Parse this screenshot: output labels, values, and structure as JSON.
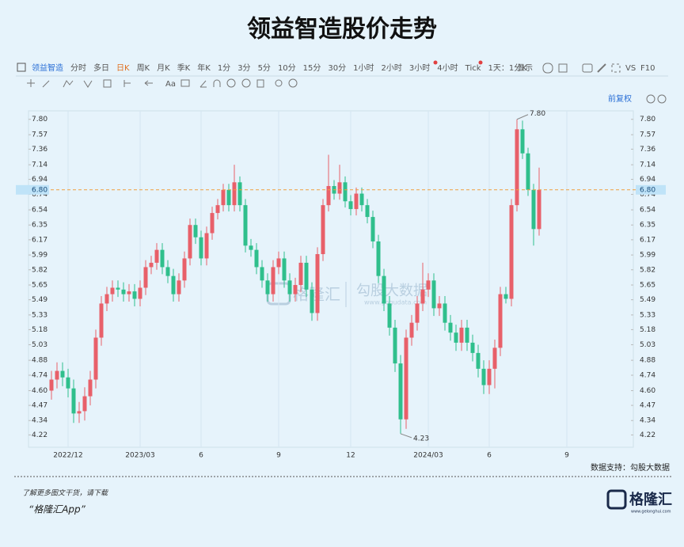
{
  "page": {
    "toolbar": {
      "row1": [
        "领益智造",
        "分时",
        "多日",
        "日K",
        "周K",
        "月K",
        "季K",
        "年K",
        "1分",
        "3分",
        "5分",
        "10分",
        "15分",
        "30分",
        "1小时",
        "2小时",
        "3小时",
        "4小时",
        "Tick",
        "1天：1分K"
      ],
      "right": [
        "显示",
        "VS",
        "F10"
      ],
      "row2_text": "Aa",
      "adjust": "前复权"
    },
    "source": "数据支持：勾股大数据",
    "watermark": {
      "left": "格隆汇",
      "right": "勾股大数据",
      "url": "www.gogudata.com"
    },
    "footer": {
      "line1": "了解更多图文干货，请下载",
      "line2": "“格隆汇App”",
      "logo": "格隆汇",
      "logo_url": "www.gelonghui.com"
    }
  },
  "chart_data": {
    "type": "candlestick",
    "title": "领益智造股价走势",
    "up_color": "#e8606a",
    "down_color": "#2fbf8c",
    "log_scale": true,
    "ylim": [
      4.12,
      7.93
    ],
    "yticks": [
      4.22,
      4.34,
      4.47,
      {
        "value": 4.6,
        "label": "4.60"
      },
      4.74,
      4.88,
      5.03,
      5.18,
      5.33,
      5.49,
      5.65,
      5.82,
      5.99,
      6.17,
      6.35,
      6.54,
      6.74,
      6.94,
      7.14,
      7.36,
      7.57,
      {
        "value": 7.8,
        "label": "7.80"
      }
    ],
    "last_price": {
      "value": 6.8,
      "label": "6.80"
    },
    "max_label": {
      "value": 7.8,
      "label": "7.80"
    },
    "min_label": {
      "value": 4.23,
      "label": "4.23"
    },
    "categories": [
      null,
      null,
      null,
      "2022/12",
      null,
      null,
      null,
      null,
      null,
      null,
      null,
      null,
      null,
      null,
      null,
      null,
      "2023/03",
      null,
      null,
      null,
      null,
      null,
      null,
      null,
      null,
      null,
      null,
      "6",
      null,
      null,
      null,
      null,
      null,
      null,
      null,
      null,
      null,
      null,
      null,
      null,
      null,
      "9",
      null,
      null,
      null,
      null,
      null,
      null,
      null,
      null,
      null,
      null,
      null,
      null,
      "12",
      null,
      null,
      null,
      null,
      null,
      null,
      null,
      null,
      null,
      null,
      null,
      null,
      null,
      "2024/03",
      null,
      null,
      null,
      null,
      null,
      null,
      null,
      null,
      null,
      null,
      "6",
      null,
      null,
      null,
      null,
      null,
      null,
      null,
      null,
      null,
      null,
      null,
      null,
      null,
      "9"
    ],
    "open": [
      4.6,
      4.7,
      4.78,
      4.72,
      4.62,
      4.4,
      4.42,
      4.55,
      4.7,
      5.1,
      5.45,
      5.55,
      5.62,
      5.6,
      5.55,
      5.58,
      5.5,
      5.62,
      5.85,
      5.9,
      6.05,
      5.85,
      5.75,
      5.55,
      5.7,
      5.95,
      6.35,
      6.2,
      5.95,
      6.25,
      6.5,
      6.6,
      6.8,
      6.6,
      6.9,
      6.6,
      6.1,
      6.05,
      5.85,
      5.7,
      5.55,
      5.85,
      5.95,
      5.7,
      5.55,
      5.65,
      5.9,
      5.6,
      5.35,
      6.0,
      6.6,
      6.85,
      6.75,
      6.9,
      6.65,
      6.55,
      6.75,
      6.6,
      6.45,
      6.15,
      5.75,
      5.45,
      5.2,
      4.85,
      4.35,
      5.1,
      5.25,
      5.45,
      5.6,
      5.7,
      5.4,
      5.45,
      5.25,
      5.15,
      5.05,
      5.2,
      5.05,
      4.95,
      4.8,
      4.65,
      4.8,
      5.0,
      5.55,
      5.5,
      6.6,
      7.65,
      7.3,
      6.8,
      6.3,
      null,
      null,
      null,
      null,
      null
    ],
    "high": [
      4.78,
      4.86,
      4.86,
      4.8,
      4.7,
      4.5,
      4.63,
      4.78,
      5.18,
      5.53,
      5.63,
      5.7,
      5.7,
      5.68,
      5.66,
      5.66,
      5.7,
      5.93,
      5.98,
      6.13,
      6.13,
      5.93,
      5.83,
      5.78,
      6.03,
      6.43,
      6.43,
      6.28,
      6.33,
      6.58,
      6.68,
      6.88,
      6.88,
      7.14,
      6.98,
      6.68,
      6.18,
      6.13,
      5.93,
      5.78,
      5.93,
      6.03,
      6.03,
      5.78,
      5.73,
      5.98,
      5.98,
      5.68,
      6.08,
      6.68,
      7.28,
      6.93,
      7.14,
      6.98,
      6.73,
      6.83,
      6.83,
      6.68,
      6.53,
      6.23,
      5.83,
      5.53,
      5.28,
      4.93,
      5.18,
      5.33,
      5.53,
      5.9,
      5.78,
      5.78,
      5.53,
      5.53,
      5.33,
      5.23,
      5.28,
      5.28,
      5.13,
      5.03,
      4.88,
      4.88,
      5.08,
      5.63,
      5.63,
      6.68,
      7.8,
      7.78,
      7.38,
      6.88,
      7.1,
      null,
      null,
      null,
      null,
      null
    ],
    "low": [
      4.52,
      4.62,
      4.64,
      4.54,
      4.32,
      4.32,
      4.34,
      4.47,
      4.62,
      5.02,
      5.37,
      5.47,
      5.52,
      5.47,
      5.47,
      5.42,
      5.42,
      5.54,
      5.77,
      5.82,
      5.77,
      5.67,
      5.47,
      5.47,
      5.62,
      5.87,
      6.12,
      5.87,
      5.87,
      6.17,
      6.42,
      6.52,
      6.52,
      6.52,
      6.52,
      6.02,
      5.97,
      5.77,
      5.62,
      5.47,
      5.47,
      5.77,
      5.62,
      5.47,
      5.47,
      5.57,
      5.52,
      5.27,
      5.27,
      5.92,
      6.52,
      6.67,
      6.67,
      6.57,
      6.47,
      6.47,
      6.52,
      6.37,
      6.07,
      5.67,
      5.37,
      5.12,
      4.77,
      4.23,
      4.27,
      5.02,
      5.17,
      5.37,
      5.52,
      5.32,
      5.32,
      5.17,
      5.07,
      4.97,
      4.97,
      4.97,
      4.87,
      4.72,
      4.57,
      4.57,
      4.62,
      4.92,
      5.45,
      5.42,
      6.52,
      7.22,
      6.72,
      6.1,
      6.22,
      null,
      null,
      null,
      null,
      null
    ],
    "close": [
      4.7,
      4.78,
      4.72,
      4.62,
      4.4,
      4.42,
      4.55,
      4.7,
      5.1,
      5.45,
      5.55,
      5.62,
      5.6,
      5.55,
      5.58,
      5.5,
      5.62,
      5.85,
      5.9,
      6.05,
      5.85,
      5.75,
      5.55,
      5.7,
      5.95,
      6.35,
      6.2,
      5.95,
      6.25,
      6.5,
      6.6,
      6.8,
      6.6,
      6.9,
      6.6,
      6.1,
      6.05,
      5.85,
      5.7,
      5.55,
      5.85,
      5.95,
      5.7,
      5.55,
      5.65,
      5.9,
      5.6,
      5.35,
      6.0,
      6.6,
      6.85,
      6.75,
      6.9,
      6.65,
      6.55,
      6.75,
      6.6,
      6.45,
      6.15,
      5.75,
      5.45,
      5.2,
      4.85,
      4.35,
      5.1,
      5.25,
      5.45,
      5.6,
      5.7,
      5.4,
      5.45,
      5.25,
      5.15,
      5.05,
      5.2,
      5.05,
      4.95,
      4.8,
      4.65,
      4.8,
      5.0,
      5.55,
      5.5,
      6.6,
      7.65,
      7.3,
      6.8,
      6.3,
      6.8,
      null,
      null,
      null,
      null,
      null
    ]
  }
}
